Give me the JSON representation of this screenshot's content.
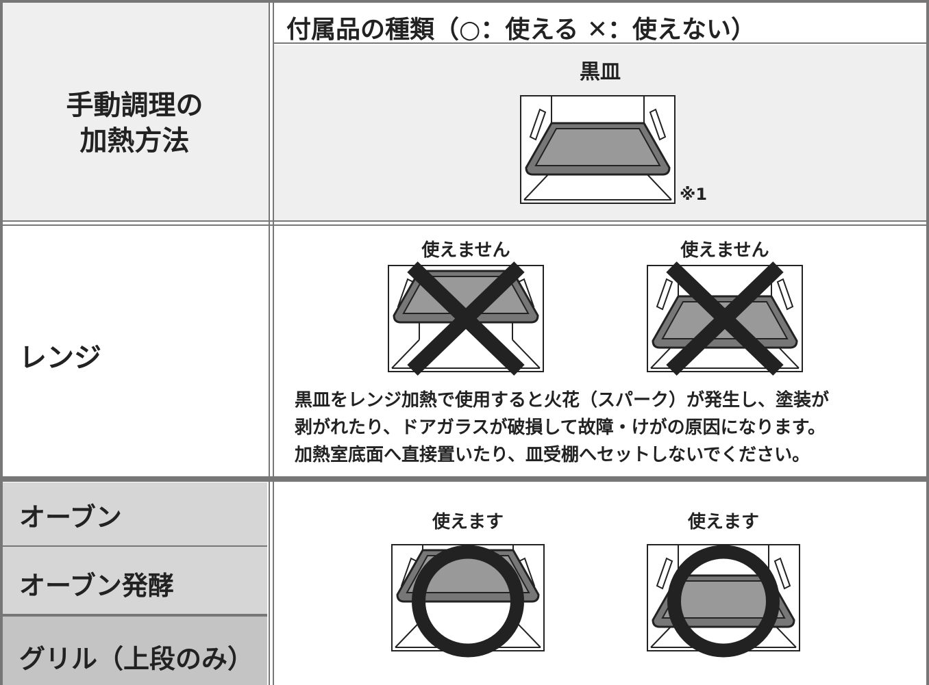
{
  "header": {
    "label_lines": [
      "手動調理の",
      "加熱方法"
    ],
    "title": "付属品の種類（○：使える ✕：使えない）",
    "accessory": "黒皿",
    "note": "※1"
  },
  "rows": [
    {
      "label": "レンジ",
      "captions": [
        "使えません",
        "使えません"
      ],
      "description": [
        "黒皿をレンジ加熱で使用すると火花（スパーク）が発生し、塗装が",
        "剥がれたり、ドアガラスが破損して故障・けがの原因になります。",
        "加熱室底面へ直接置いたり、皿受棚へセットしないでください。"
      ]
    },
    {
      "labels": [
        "オーブン",
        "オーブン発酵",
        "グリル（上段のみ）"
      ],
      "captions": [
        "使えます",
        "使えます"
      ]
    }
  ]
}
